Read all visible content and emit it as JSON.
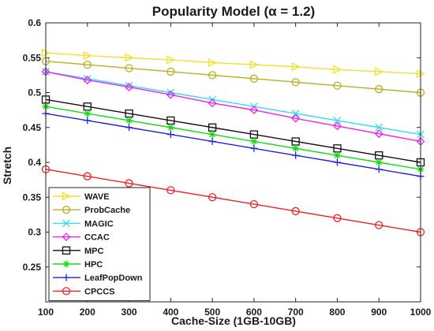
{
  "chart_data": {
    "type": "line",
    "title": "Popularity Model (α = 1.2)",
    "xlabel": "Cache-Size (1GB-10GB)",
    "ylabel": "Stretch",
    "xlim": [
      100,
      1000
    ],
    "ylim": [
      0.2,
      0.6
    ],
    "xticks": [
      100,
      200,
      300,
      400,
      500,
      600,
      700,
      800,
      900,
      1000
    ],
    "yticks": [
      0.2,
      0.25,
      0.3,
      0.35,
      0.4,
      0.45,
      0.5,
      0.55,
      0.6
    ],
    "ytick_labels": [
      "",
      "0.25",
      "0.3",
      "0.35",
      "0.4",
      "0.45",
      "0.5",
      "0.55",
      "0.6"
    ],
    "grid": false,
    "legend_position": "lower-left",
    "x": [
      100,
      200,
      300,
      400,
      500,
      600,
      700,
      800,
      900,
      1000
    ],
    "series": [
      {
        "name": "WAVE",
        "color": "#f2e02b",
        "marker": "triangle-right",
        "values": [
          0.557,
          0.553,
          0.55,
          0.547,
          0.543,
          0.54,
          0.537,
          0.533,
          0.53,
          0.527
        ]
      },
      {
        "name": "ProbCache",
        "color": "#b8b020",
        "marker": "circle",
        "values": [
          0.545,
          0.54,
          0.535,
          0.53,
          0.525,
          0.52,
          0.515,
          0.51,
          0.505,
          0.5
        ]
      },
      {
        "name": "MAGIC",
        "color": "#33ddee",
        "marker": "x",
        "values": [
          0.53,
          0.52,
          0.51,
          0.5,
          0.49,
          0.48,
          0.47,
          0.46,
          0.45,
          0.44
        ]
      },
      {
        "name": "CCAC",
        "color": "#ee22ee",
        "marker": "diamond",
        "values": [
          0.53,
          0.518,
          0.508,
          0.497,
          0.485,
          0.475,
          0.463,
          0.452,
          0.441,
          0.43
        ]
      },
      {
        "name": "MPC",
        "color": "#111111",
        "marker": "square",
        "values": [
          0.49,
          0.48,
          0.47,
          0.46,
          0.45,
          0.44,
          0.43,
          0.42,
          0.41,
          0.4
        ]
      },
      {
        "name": "HPC",
        "color": "#11dd11",
        "marker": "asterisk",
        "values": [
          0.48,
          0.47,
          0.46,
          0.45,
          0.44,
          0.43,
          0.42,
          0.41,
          0.4,
          0.39
        ]
      },
      {
        "name": "LeafPopDown",
        "color": "#2222dd",
        "marker": "plus",
        "values": [
          0.47,
          0.46,
          0.45,
          0.44,
          0.43,
          0.42,
          0.41,
          0.4,
          0.39,
          0.38
        ]
      },
      {
        "name": "CPCCS",
        "color": "#ee2222",
        "marker": "circle",
        "values": [
          0.39,
          0.38,
          0.37,
          0.36,
          0.35,
          0.34,
          0.33,
          0.32,
          0.31,
          0.3
        ]
      }
    ]
  }
}
